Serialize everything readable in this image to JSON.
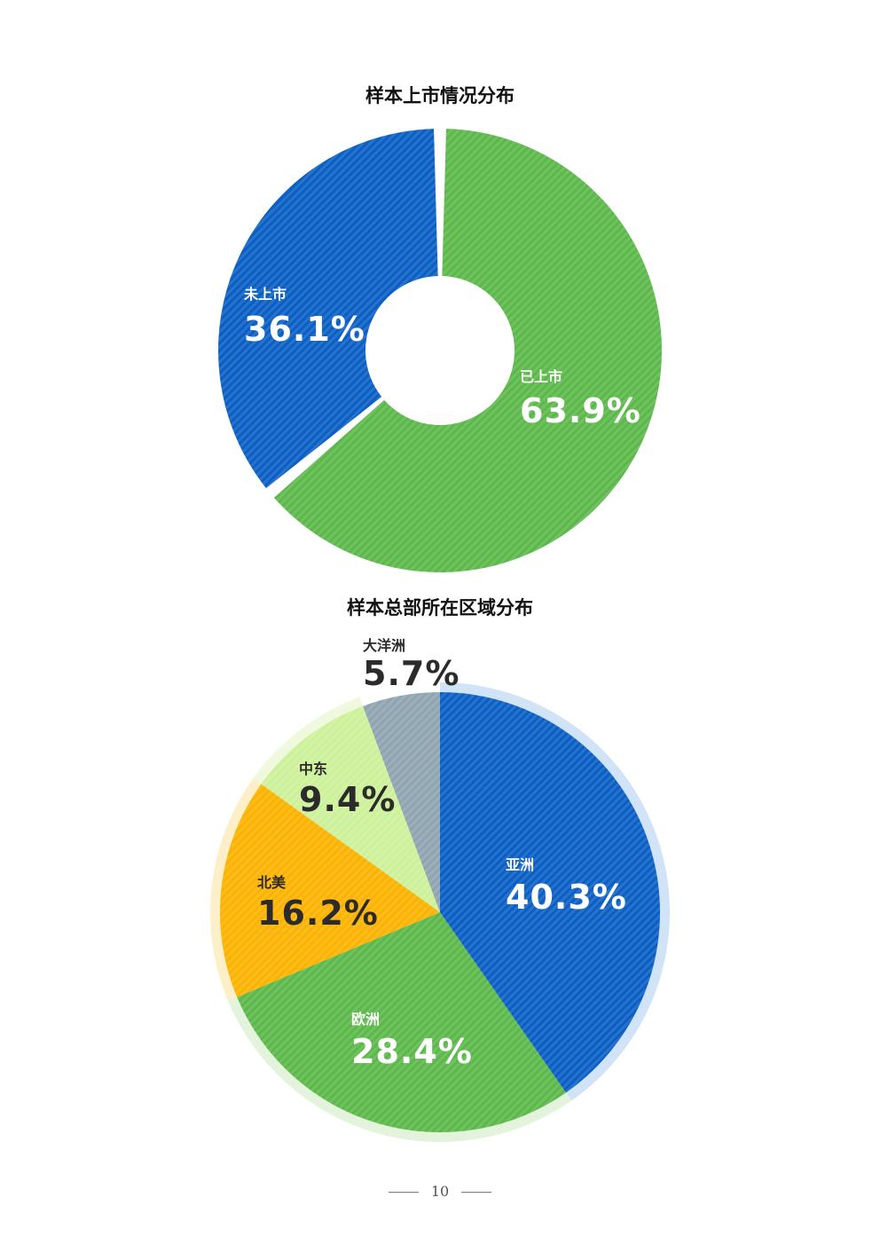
{
  "chart_data": [
    {
      "type": "pie",
      "title": "样本上市情况分布",
      "donut": true,
      "slices": [
        {
          "label": "已上市",
          "value": 63.9,
          "display": "63.9%",
          "color": "#5cb84a"
        },
        {
          "label": "未上市",
          "value": 36.1,
          "display": "36.1%",
          "color": "#0a5fc4"
        }
      ]
    },
    {
      "type": "pie",
      "title": "样本总部所在区域分布",
      "donut": false,
      "slices": [
        {
          "label": "亚洲",
          "value": 40.3,
          "display": "40.3%",
          "color": "#0a5fc4"
        },
        {
          "label": "欧洲",
          "value": 28.4,
          "display": "28.4%",
          "color": "#5cb84a"
        },
        {
          "label": "北美",
          "value": 16.2,
          "display": "16.2%",
          "color": "#fcb300"
        },
        {
          "label": "中东",
          "value": 9.4,
          "display": "9.4%",
          "color": "#cdf19a"
        },
        {
          "label": "大洋洲",
          "value": 5.7,
          "display": "5.7%",
          "color": "#8fa4b0"
        }
      ]
    }
  ],
  "footer": {
    "page_number": "10"
  }
}
